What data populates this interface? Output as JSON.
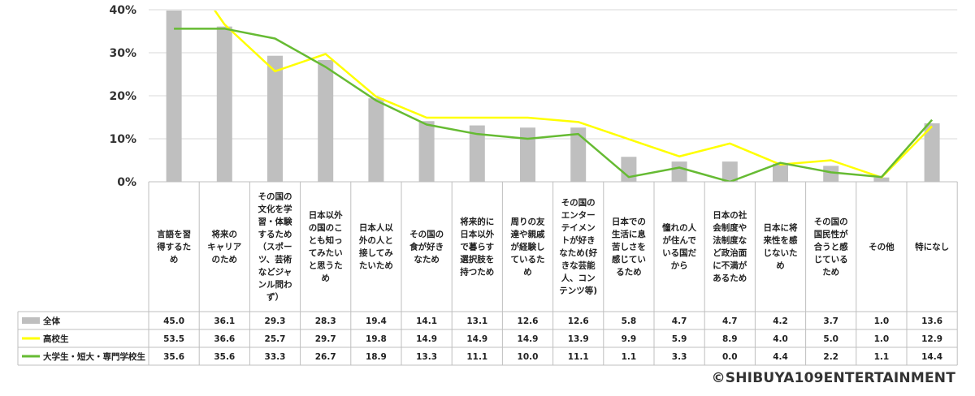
{
  "chart_data": {
    "type": "bar",
    "ylim": [
      0,
      40
    ],
    "yticks": [
      "0%",
      "10%",
      "20%",
      "30%",
      "40%"
    ],
    "categories": [
      "言語を習得するため",
      "将来のキャリアのため",
      "その国の文化を学習・体験するため（スポーツ、芸術などジャンル問わず）",
      "日本以外の国のことも知ってみたいと思うため",
      "日本人以外の人と接してみたいため",
      "その国の食が好きなため",
      "将来的に日本以外で暮らす選択肢を持つため",
      "周りの友達や親戚が経験しているため",
      "その国のエンターテイメントが好きなため(好きな芸能人、コンテンツ等)",
      "日本での生活に息苦しさを感じているため",
      "憧れの人が住んでいる国だから",
      "日本の社会制度や法制度など政治面に不満があるため",
      "日本に将来性を感じないため",
      "その国の国民性が合うと感じているため",
      "その他",
      "特になし"
    ],
    "category_lines": [
      [
        "言語を習",
        "得するた",
        "め"
      ],
      [
        "将来の",
        "キャリア",
        "のため"
      ],
      [
        "その国の",
        "文化を学",
        "習・体験",
        "するため",
        "（スポー",
        "ツ、芸術",
        "などジャ",
        "ンル問わ",
        "ず）"
      ],
      [
        "日本以外",
        "の国のこ",
        "とも知っ",
        "てみたい",
        "と思うた",
        "め"
      ],
      [
        "日本人以",
        "外の人と",
        "接してみ",
        "たいため"
      ],
      [
        "その国の",
        "食が好き",
        "なため"
      ],
      [
        "将来的に",
        "日本以外",
        "で暮らす",
        "選択肢を",
        "持つため"
      ],
      [
        "周りの友",
        "達や親戚",
        "が経験し",
        "ているた",
        "め"
      ],
      [
        "その国の",
        "エンター",
        "テイメン",
        "トが好き",
        "なため(好",
        "きな芸能",
        "人、コン",
        "テンツ等)"
      ],
      [
        "日本での",
        "生活に息",
        "苦しさを",
        "感じてい",
        "るため"
      ],
      [
        "憧れの人",
        "が住んで",
        "いる国だ",
        "から"
      ],
      [
        "日本の社",
        "会制度や",
        "法制度な",
        "ど政治面",
        "に不満が",
        "あるため"
      ],
      [
        "日本に将",
        "来性を感",
        "じないた",
        "め"
      ],
      [
        "その国の",
        "国民性が",
        "合うと感",
        "じている",
        "ため"
      ],
      [
        "その他"
      ],
      [
        "特になし"
      ]
    ],
    "series": [
      {
        "name": "全体",
        "type": "bar",
        "color": "#bfbfbf",
        "values": [
          45.0,
          36.1,
          29.3,
          28.3,
          19.4,
          14.1,
          13.1,
          12.6,
          12.6,
          5.8,
          4.7,
          4.7,
          4.2,
          3.7,
          1.0,
          13.6
        ],
        "labels": [
          "45.0",
          "36.1",
          "29.3",
          "28.3",
          "19.4",
          "14.1",
          "13.1",
          "12.6",
          "12.6",
          "5.8",
          "4.7",
          "4.7",
          "4.2",
          "3.7",
          "1.0",
          "13.6"
        ]
      },
      {
        "name": "高校生",
        "type": "line",
        "color": "#ffff00",
        "values": [
          53.5,
          36.6,
          25.7,
          29.7,
          19.8,
          14.9,
          14.9,
          14.9,
          13.9,
          9.9,
          5.9,
          8.9,
          4.0,
          5.0,
          1.0,
          12.9
        ],
        "labels": [
          "53.5",
          "36.6",
          "25.7",
          "29.7",
          "19.8",
          "14.9",
          "14.9",
          "14.9",
          "13.9",
          "9.9",
          "5.9",
          "8.9",
          "4.0",
          "5.0",
          "1.0",
          "12.9"
        ]
      },
      {
        "name": "大学生・短大・専門学校生",
        "type": "line",
        "color": "#66bb33",
        "values": [
          35.6,
          35.6,
          33.3,
          26.7,
          18.9,
          13.3,
          11.1,
          10.0,
          11.1,
          1.1,
          3.3,
          0.0,
          4.4,
          2.2,
          1.1,
          14.4
        ],
        "labels": [
          "35.6",
          "35.6",
          "33.3",
          "26.7",
          "18.9",
          "13.3",
          "11.1",
          "10.0",
          "11.1",
          "1.1",
          "3.3",
          "0.0",
          "4.4",
          "2.2",
          "1.1",
          "14.4"
        ]
      }
    ]
  },
  "credit": "©SHIBUYA109ENTERTAINMENT"
}
